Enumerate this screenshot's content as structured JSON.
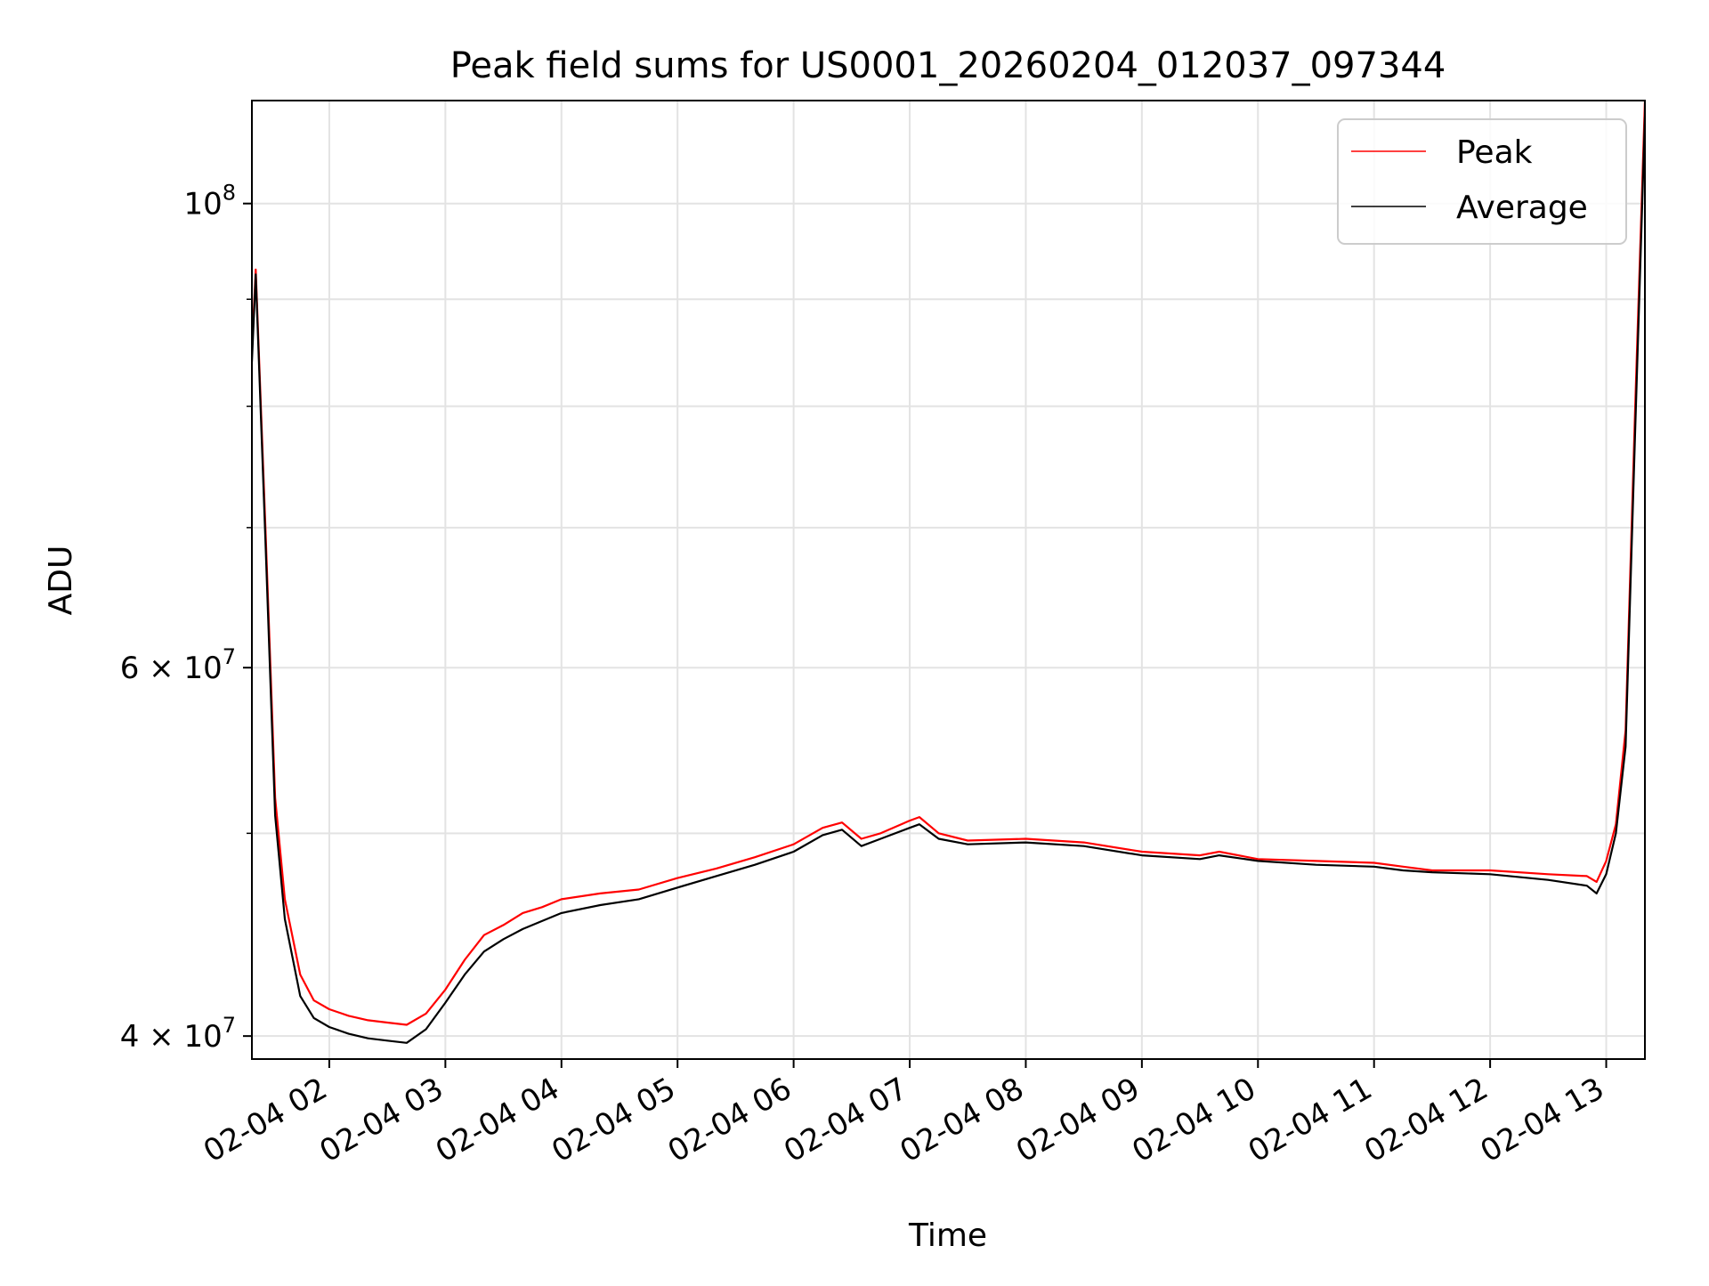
{
  "chart_data": {
    "type": "line",
    "title": "Peak field sums for US0001_20260204_012037_097344",
    "xlabel": "Time",
    "ylabel": "ADU",
    "y_scale": "log",
    "grid": true,
    "legend_position": "top-right",
    "xlim": [
      "02-04 01:20",
      "02-04 13:20"
    ],
    "ylim": [
      39000000,
      112000000
    ],
    "x_ticks": [
      "02-04 02",
      "02-04 03",
      "02-04 04",
      "02-04 05",
      "02-04 06",
      "02-04 07",
      "02-04 08",
      "02-04 09",
      "02-04 10",
      "02-04 11",
      "02-04 12",
      "02-04 13"
    ],
    "y_ticks": [
      {
        "value": 40000000,
        "mantissa": "4",
        "base": "10",
        "exponent": "7"
      },
      {
        "value": 60000000,
        "mantissa": "6",
        "base": "10",
        "exponent": "7"
      },
      {
        "value": 100000000,
        "mantissa": "",
        "base": "10",
        "exponent": "8"
      }
    ],
    "y_minor_ticks": [
      50000000,
      70000000,
      80000000,
      90000000
    ],
    "series": [
      {
        "name": "Peak",
        "color": "#ff0000",
        "x": [
          "02-04 01:20",
          "02-04 01:22",
          "02-04 01:27",
          "02-04 01:32",
          "02-04 01:37",
          "02-04 01:45",
          "02-04 01:52",
          "02-04 02:00",
          "02-04 02:10",
          "02-04 02:20",
          "02-04 02:30",
          "02-04 02:40",
          "02-04 02:50",
          "02-04 03:00",
          "02-04 03:10",
          "02-04 03:20",
          "02-04 03:30",
          "02-04 03:40",
          "02-04 03:50",
          "02-04 04:00",
          "02-04 04:20",
          "02-04 04:40",
          "02-04 05:00",
          "02-04 05:20",
          "02-04 05:40",
          "02-04 06:00",
          "02-04 06:15",
          "02-04 06:25",
          "02-04 06:35",
          "02-04 06:45",
          "02-04 07:00",
          "02-04 07:05",
          "02-04 07:15",
          "02-04 07:30",
          "02-04 08:00",
          "02-04 08:30",
          "02-04 09:00",
          "02-04 09:30",
          "02-04 09:40",
          "02-04 10:00",
          "02-04 10:30",
          "02-04 11:00",
          "02-04 11:15",
          "02-04 11:30",
          "02-04 12:00",
          "02-04 12:30",
          "02-04 12:50",
          "02-04 12:55",
          "02-04 13:00",
          "02-04 13:05",
          "02-04 13:10",
          "02-04 13:15",
          "02-04 13:20"
        ],
        "values": [
          85000000,
          93000000,
          70000000,
          52000000,
          46500000,
          42800000,
          41600000,
          41200000,
          40900000,
          40700000,
          40600000,
          40500000,
          41000000,
          42100000,
          43500000,
          44700000,
          45200000,
          45800000,
          46100000,
          46500000,
          46800000,
          47000000,
          47600000,
          48100000,
          48700000,
          49400000,
          50300000,
          50600000,
          49700000,
          50000000,
          50700000,
          50900000,
          50000000,
          49600000,
          49700000,
          49500000,
          49000000,
          48800000,
          49000000,
          48600000,
          48500000,
          48400000,
          48200000,
          48000000,
          48000000,
          47800000,
          47700000,
          47400000,
          48500000,
          50500000,
          56000000,
          80000000,
          112000000
        ]
      },
      {
        "name": "Average",
        "color": "#000000",
        "x": [
          "02-04 01:20",
          "02-04 01:22",
          "02-04 01:27",
          "02-04 01:32",
          "02-04 01:37",
          "02-04 01:45",
          "02-04 01:52",
          "02-04 02:00",
          "02-04 02:10",
          "02-04 02:20",
          "02-04 02:30",
          "02-04 02:40",
          "02-04 02:50",
          "02-04 03:00",
          "02-04 03:10",
          "02-04 03:20",
          "02-04 03:30",
          "02-04 03:40",
          "02-04 03:50",
          "02-04 04:00",
          "02-04 04:20",
          "02-04 04:40",
          "02-04 05:00",
          "02-04 05:20",
          "02-04 05:40",
          "02-04 06:00",
          "02-04 06:15",
          "02-04 06:25",
          "02-04 06:35",
          "02-04 06:45",
          "02-04 07:00",
          "02-04 07:05",
          "02-04 07:15",
          "02-04 07:30",
          "02-04 08:00",
          "02-04 08:30",
          "02-04 09:00",
          "02-04 09:30",
          "02-04 09:40",
          "02-04 10:00",
          "02-04 10:30",
          "02-04 11:00",
          "02-04 11:15",
          "02-04 11:30",
          "02-04 12:00",
          "02-04 12:30",
          "02-04 12:50",
          "02-04 12:55",
          "02-04 13:00",
          "02-04 13:05",
          "02-04 13:10",
          "02-04 13:15",
          "02-04 13:20"
        ],
        "values": [
          84000000,
          92500000,
          69000000,
          51000000,
          45500000,
          41800000,
          40800000,
          40400000,
          40100000,
          39900000,
          39800000,
          39700000,
          40300000,
          41500000,
          42800000,
          43900000,
          44500000,
          45000000,
          45400000,
          45800000,
          46200000,
          46500000,
          47100000,
          47700000,
          48300000,
          49000000,
          49900000,
          50200000,
          49300000,
          49700000,
          50300000,
          50500000,
          49700000,
          49400000,
          49500000,
          49300000,
          48800000,
          48600000,
          48800000,
          48500000,
          48300000,
          48200000,
          48000000,
          47900000,
          47800000,
          47500000,
          47200000,
          46800000,
          47800000,
          50000000,
          55000000,
          78000000,
          110000000
        ]
      }
    ]
  }
}
